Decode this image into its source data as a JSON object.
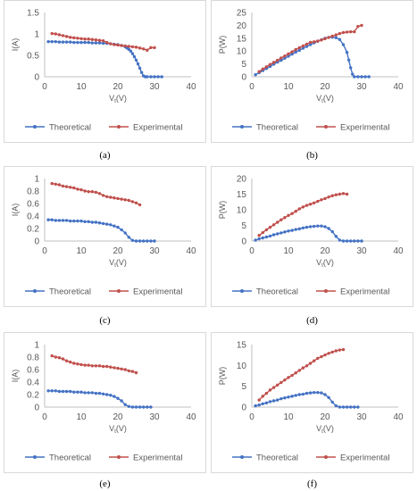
{
  "colors": {
    "theoretical": "#4472c4",
    "experimental": "#c0504d"
  },
  "legend": {
    "theoretical": "Theoretical",
    "experimental": "Experimental"
  },
  "captions": [
    "(a)",
    "(b)",
    "(c)",
    "(d)",
    "(e)",
    "(f)"
  ],
  "chart_data": [
    {
      "id": "a",
      "type": "line",
      "xlabel": "V",
      "xlabel_sub": "t",
      "xlabel_unit": "(V)",
      "ylabel": "I(A)",
      "xlim": [
        0,
        40
      ],
      "ylim": [
        0,
        1.5
      ],
      "xticks": [
        "0",
        "10",
        "20",
        "30",
        "40"
      ],
      "yticks": [
        "0",
        "0.5",
        "1",
        "1.5"
      ],
      "series": [
        {
          "name": "Theoretical",
          "x": [
            1,
            2,
            3,
            4,
            5,
            6,
            7,
            8,
            9,
            10,
            11,
            12,
            13,
            14,
            15,
            16,
            17,
            18,
            19,
            20,
            21,
            22,
            22.5,
            23,
            23.5,
            24,
            24.5,
            25,
            25.5,
            26,
            26.5,
            27,
            27.5,
            28,
            29,
            30,
            31,
            32
          ],
          "y": [
            0.82,
            0.82,
            0.82,
            0.81,
            0.81,
            0.81,
            0.81,
            0.8,
            0.8,
            0.8,
            0.8,
            0.8,
            0.79,
            0.79,
            0.79,
            0.78,
            0.78,
            0.77,
            0.76,
            0.75,
            0.73,
            0.7,
            0.67,
            0.64,
            0.6,
            0.54,
            0.47,
            0.39,
            0.3,
            0.2,
            0.1,
            0.02,
            0,
            0,
            0,
            0,
            0,
            0
          ]
        },
        {
          "name": "Experimental",
          "x": [
            2,
            3,
            4,
            5,
            6,
            7,
            8,
            9,
            10,
            11,
            12,
            13,
            14,
            15,
            16,
            17,
            18,
            19,
            20,
            21,
            22,
            23,
            24,
            25,
            26,
            27,
            28,
            29,
            30
          ],
          "y": [
            1.01,
            1.0,
            0.98,
            0.96,
            0.94,
            0.92,
            0.91,
            0.9,
            0.89,
            0.88,
            0.88,
            0.87,
            0.86,
            0.85,
            0.84,
            0.8,
            0.77,
            0.75,
            0.74,
            0.73,
            0.72,
            0.71,
            0.7,
            0.69,
            0.67,
            0.65,
            0.62,
            0.68,
            0.68
          ]
        }
      ]
    },
    {
      "id": "b",
      "type": "line",
      "xlabel": "V",
      "xlabel_sub": "t",
      "xlabel_unit": "(V)",
      "ylabel": "P(W)",
      "xlim": [
        0,
        40
      ],
      "ylim": [
        0,
        25
      ],
      "xticks": [
        "0",
        "10",
        "20",
        "30",
        "40"
      ],
      "yticks": [
        "0",
        "5",
        "10",
        "15",
        "20",
        "25"
      ],
      "series": [
        {
          "name": "Theoretical",
          "x": [
            1,
            2,
            3,
            4,
            5,
            6,
            7,
            8,
            9,
            10,
            11,
            12,
            13,
            14,
            15,
            16,
            17,
            18,
            19,
            20,
            21,
            22,
            23,
            24,
            25,
            26,
            26.5,
            27,
            27.5,
            28,
            29,
            30,
            31,
            32
          ],
          "y": [
            0.8,
            1.6,
            2.4,
            3.2,
            4.0,
            4.9,
            5.7,
            6.4,
            7.2,
            8.0,
            8.8,
            9.6,
            10.3,
            11.1,
            11.8,
            12.5,
            13.2,
            13.8,
            14.4,
            15.0,
            15.3,
            15.4,
            15.2,
            14.5,
            12.5,
            9.5,
            6.5,
            3.5,
            1.0,
            0,
            0,
            0,
            0,
            0
          ]
        },
        {
          "name": "Experimental",
          "x": [
            2,
            3,
            4,
            5,
            6,
            7,
            8,
            9,
            10,
            11,
            12,
            13,
            14,
            15,
            16,
            17,
            18,
            19,
            20,
            21,
            22,
            23,
            24,
            25,
            26,
            27,
            28,
            29,
            30
          ],
          "y": [
            2.0,
            3.0,
            3.9,
            4.8,
            5.6,
            6.4,
            7.3,
            8.1,
            8.9,
            9.7,
            10.6,
            11.3,
            12.0,
            12.7,
            13.4,
            13.6,
            13.9,
            14.3,
            14.8,
            15.3,
            15.8,
            16.3,
            16.8,
            17.2,
            17.4,
            17.5,
            17.5,
            19.6,
            20.0
          ]
        }
      ]
    },
    {
      "id": "c",
      "type": "line",
      "xlabel": "V",
      "xlabel_sub": "t",
      "xlabel_unit": "(V)",
      "ylabel": "I(A)",
      "xlim": [
        0,
        40
      ],
      "ylim": [
        0,
        1
      ],
      "xticks": [
        "0",
        "10",
        "20",
        "30",
        "40"
      ],
      "yticks": [
        "0",
        "0.2",
        "0.4",
        "0.6",
        "0.8",
        "1"
      ],
      "series": [
        {
          "name": "Theoretical",
          "x": [
            1,
            2,
            3,
            4,
            5,
            6,
            7,
            8,
            9,
            10,
            11,
            12,
            13,
            14,
            15,
            16,
            17,
            18,
            19,
            20,
            21,
            22,
            23,
            24,
            25,
            26,
            27,
            28,
            29,
            30
          ],
          "y": [
            0.34,
            0.34,
            0.33,
            0.33,
            0.33,
            0.33,
            0.32,
            0.32,
            0.32,
            0.32,
            0.31,
            0.31,
            0.3,
            0.3,
            0.29,
            0.28,
            0.27,
            0.26,
            0.24,
            0.22,
            0.18,
            0.13,
            0.06,
            0.01,
            0,
            0,
            0,
            0,
            0,
            0
          ]
        },
        {
          "name": "Experimental",
          "x": [
            2,
            3,
            4,
            5,
            6,
            7,
            8,
            9,
            10,
            11,
            12,
            13,
            14,
            15,
            16,
            17,
            18,
            19,
            20,
            21,
            22,
            23,
            24,
            25,
            26
          ],
          "y": [
            0.92,
            0.91,
            0.9,
            0.88,
            0.87,
            0.86,
            0.85,
            0.83,
            0.82,
            0.8,
            0.79,
            0.79,
            0.78,
            0.76,
            0.73,
            0.71,
            0.7,
            0.69,
            0.68,
            0.67,
            0.66,
            0.65,
            0.63,
            0.61,
            0.58
          ]
        }
      ]
    },
    {
      "id": "d",
      "type": "line",
      "xlabel": "V",
      "xlabel_sub": "t",
      "xlabel_unit": "(V)",
      "ylabel": "P(W)",
      "xlim": [
        0,
        40
      ],
      "ylim": [
        0,
        20
      ],
      "xticks": [
        "0",
        "10",
        "20",
        "30",
        "40"
      ],
      "yticks": [
        "0",
        "5",
        "10",
        "15",
        "20"
      ],
      "series": [
        {
          "name": "Theoretical",
          "x": [
            1,
            2,
            3,
            4,
            5,
            6,
            7,
            8,
            9,
            10,
            11,
            12,
            13,
            14,
            15,
            16,
            17,
            18,
            19,
            20,
            21,
            22,
            23,
            24,
            25,
            26,
            27,
            28,
            29,
            30
          ],
          "y": [
            0.3,
            0.7,
            1.0,
            1.3,
            1.6,
            2.0,
            2.3,
            2.6,
            2.9,
            3.2,
            3.4,
            3.7,
            3.9,
            4.2,
            4.4,
            4.6,
            4.7,
            4.8,
            4.8,
            4.6,
            4.0,
            3.0,
            1.5,
            0.3,
            0,
            0,
            0,
            0,
            0,
            0
          ]
        },
        {
          "name": "Experimental",
          "x": [
            2,
            3,
            4,
            5,
            6,
            7,
            8,
            9,
            10,
            11,
            12,
            13,
            14,
            15,
            16,
            17,
            18,
            19,
            20,
            21,
            22,
            23,
            24,
            25,
            26
          ],
          "y": [
            1.8,
            2.7,
            3.6,
            4.4,
            5.2,
            6.0,
            6.8,
            7.5,
            8.2,
            8.8,
            9.5,
            10.3,
            10.9,
            11.4,
            11.8,
            12.2,
            12.7,
            13.2,
            13.6,
            14.1,
            14.5,
            14.8,
            15.0,
            15.2,
            15.0
          ]
        }
      ]
    },
    {
      "id": "e",
      "type": "line",
      "xlabel": "V",
      "xlabel_sub": "t",
      "xlabel_unit": "(V)",
      "ylabel": "I(A)",
      "xlim": [
        0,
        40
      ],
      "ylim": [
        0,
        1
      ],
      "xticks": [
        "0",
        "10",
        "20",
        "30",
        "40"
      ],
      "yticks": [
        "0",
        "0.2",
        "0.4",
        "0.6",
        "0.8",
        "1"
      ],
      "series": [
        {
          "name": "Theoretical",
          "x": [
            1,
            2,
            3,
            4,
            5,
            6,
            7,
            8,
            9,
            10,
            11,
            12,
            13,
            14,
            15,
            16,
            17,
            18,
            19,
            20,
            21,
            22,
            23,
            24,
            25,
            26,
            27,
            28,
            29
          ],
          "y": [
            0.26,
            0.26,
            0.26,
            0.25,
            0.25,
            0.25,
            0.25,
            0.24,
            0.24,
            0.24,
            0.23,
            0.23,
            0.23,
            0.22,
            0.22,
            0.21,
            0.2,
            0.19,
            0.17,
            0.14,
            0.1,
            0.04,
            0.01,
            0,
            0,
            0,
            0,
            0,
            0
          ]
        },
        {
          "name": "Experimental",
          "x": [
            2,
            3,
            4,
            5,
            6,
            7,
            8,
            9,
            10,
            11,
            12,
            13,
            14,
            15,
            16,
            17,
            18,
            19,
            20,
            21,
            22,
            23,
            24,
            25
          ],
          "y": [
            0.82,
            0.8,
            0.79,
            0.77,
            0.74,
            0.72,
            0.7,
            0.69,
            0.68,
            0.67,
            0.67,
            0.66,
            0.66,
            0.66,
            0.65,
            0.65,
            0.64,
            0.63,
            0.62,
            0.61,
            0.6,
            0.58,
            0.57,
            0.55
          ]
        }
      ]
    },
    {
      "id": "f",
      "type": "line",
      "xlabel": "V",
      "xlabel_sub": "t",
      "xlabel_unit": "(V)",
      "ylabel": "P(W)",
      "xlim": [
        0,
        40
      ],
      "ylim": [
        0,
        15
      ],
      "xticks": [
        "0",
        "10",
        "20",
        "30",
        "40"
      ],
      "yticks": [
        "0",
        "5",
        "10",
        "15"
      ],
      "series": [
        {
          "name": "Theoretical",
          "x": [
            1,
            2,
            3,
            4,
            5,
            6,
            7,
            8,
            9,
            10,
            11,
            12,
            13,
            14,
            15,
            16,
            17,
            18,
            19,
            20,
            21,
            22,
            23,
            24,
            25,
            26,
            27,
            28,
            29
          ],
          "y": [
            0.3,
            0.5,
            0.8,
            1.0,
            1.3,
            1.5,
            1.7,
            2.0,
            2.2,
            2.4,
            2.6,
            2.8,
            3.0,
            3.1,
            3.3,
            3.4,
            3.5,
            3.5,
            3.4,
            3.0,
            2.3,
            1.2,
            0.3,
            0,
            0,
            0,
            0,
            0,
            0
          ]
        },
        {
          "name": "Experimental",
          "x": [
            2,
            3,
            4,
            5,
            6,
            7,
            8,
            9,
            10,
            11,
            12,
            13,
            14,
            15,
            16,
            17,
            18,
            19,
            20,
            21,
            22,
            23,
            24,
            25
          ],
          "y": [
            1.7,
            2.6,
            3.3,
            4.1,
            4.7,
            5.3,
            5.9,
            6.5,
            7.1,
            7.6,
            8.2,
            8.8,
            9.4,
            9.9,
            10.5,
            11.1,
            11.7,
            12.1,
            12.5,
            12.9,
            13.2,
            13.5,
            13.7,
            13.8
          ]
        }
      ]
    }
  ]
}
